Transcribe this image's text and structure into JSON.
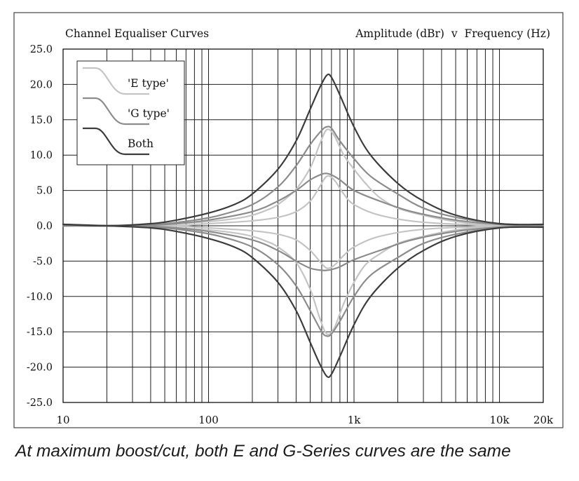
{
  "chart_data": {
    "type": "line",
    "title": "Channel Equaliser Curves",
    "subtitle": "Amplitude (dBr)  v  Frequency (Hz)",
    "x_scale": "log",
    "xlim": [
      10,
      20000
    ],
    "ylim": [
      -25,
      25
    ],
    "grid": true,
    "legend_position": "top-left",
    "x_tick_values": [
      10,
      100,
      1000,
      10000,
      20000
    ],
    "x_tick_labels": [
      "10",
      "100",
      "1k",
      "10k",
      "20k"
    ],
    "y_tick_values": [
      25,
      20,
      15,
      10,
      5,
      0,
      -5,
      -10,
      -15,
      -20,
      -25
    ],
    "y_tick_labels": [
      "25.0",
      "20.0",
      "15.0",
      "10.0",
      "5.0",
      "0.0",
      "-5.0",
      "-10.0",
      "-15.0",
      "-20.0",
      "-25.0"
    ],
    "colors": {
      "E type": "#c4c4c4",
      "G type": "#8c8c8c",
      "Both": "#3c3c3c"
    },
    "legend": [
      {
        "name": "'E type'",
        "color": "#c4c4c4"
      },
      {
        "name": "'G type'",
        "color": "#8c8c8c"
      },
      {
        "name": "Both",
        "color": "#3c3c3c"
      }
    ],
    "series": [
      {
        "name": "'E type'",
        "color": "#c4c4c4",
        "x": [
          10,
          30,
          60,
          100,
          150,
          200,
          250,
          300,
          400,
          500,
          580,
          650,
          730,
          850,
          1000,
          1200,
          1500,
          2000,
          3000,
          5000,
          10000,
          20000
        ],
        "y": [
          0,
          0,
          0.3,
          0.6,
          1.0,
          1.5,
          2.2,
          3.0,
          5.2,
          8.2,
          11.5,
          13.6,
          12.8,
          10.0,
          8.0,
          6.0,
          4.0,
          2.5,
          1.5,
          0.6,
          0,
          0
        ]
      },
      {
        "name": "'E type'",
        "color": "#c4c4c4",
        "x": [
          10,
          30,
          60,
          100,
          150,
          200,
          250,
          300,
          400,
          500,
          580,
          650,
          730,
          850,
          1000,
          1200,
          1500,
          2000,
          3000,
          5000,
          10000,
          20000
        ],
        "y": [
          0,
          0,
          -0.3,
          -0.6,
          -1.0,
          -1.5,
          -2.2,
          -3.0,
          -5.2,
          -9.0,
          -13.0,
          -15.3,
          -14.5,
          -11.0,
          -8.0,
          -5.5,
          -4.0,
          -2.5,
          -1.5,
          -0.6,
          0,
          0
        ]
      },
      {
        "name": "'E type'",
        "color": "#c4c4c4",
        "x": [
          10,
          50,
          100,
          200,
          300,
          400,
          500,
          580,
          650,
          730,
          850,
          1000,
          1500,
          3000,
          10000,
          20000
        ],
        "y": [
          0,
          0,
          0.3,
          0.7,
          1.2,
          2.0,
          3.5,
          5.5,
          7.0,
          6.5,
          4.5,
          3.0,
          1.5,
          0.5,
          0,
          0
        ]
      },
      {
        "name": "'E type'",
        "color": "#c4c4c4",
        "x": [
          10,
          50,
          100,
          200,
          300,
          400,
          500,
          580,
          650,
          730,
          850,
          1000,
          1500,
          3000,
          10000,
          20000
        ],
        "y": [
          0,
          0,
          -0.3,
          -0.7,
          -1.2,
          -2.0,
          -3.5,
          -5.0,
          -6.0,
          -5.6,
          -4.2,
          -3.0,
          -1.5,
          -0.5,
          0,
          0
        ]
      },
      {
        "name": "'G type'",
        "color": "#8c8c8c",
        "x": [
          10,
          30,
          50,
          80,
          120,
          200,
          300,
          400,
          500,
          600,
          650,
          700,
          800,
          1000,
          1300,
          2000,
          3000,
          5000,
          10000,
          20000
        ],
        "y": [
          0,
          0,
          0.3,
          0.8,
          1.5,
          3.0,
          5.5,
          8.5,
          11.5,
          13.5,
          14.0,
          13.8,
          12.0,
          9.5,
          7.0,
          4.5,
          2.5,
          1.2,
          0.3,
          0
        ]
      },
      {
        "name": "'G type'",
        "color": "#8c8c8c",
        "x": [
          10,
          30,
          50,
          80,
          120,
          200,
          300,
          400,
          500,
          600,
          650,
          700,
          800,
          1000,
          1300,
          2000,
          3000,
          5000,
          10000,
          20000
        ],
        "y": [
          0,
          0,
          -0.3,
          -0.8,
          -1.5,
          -3.0,
          -5.5,
          -8.5,
          -12.0,
          -15.0,
          -15.6,
          -15.3,
          -13.5,
          -10.0,
          -7.0,
          -4.5,
          -2.5,
          -1.2,
          -0.3,
          0
        ]
      },
      {
        "name": "'G type'",
        "color": "#8c8c8c",
        "x": [
          10,
          30,
          60,
          100,
          200,
          300,
          400,
          500,
          600,
          650,
          700,
          800,
          1000,
          1500,
          2500,
          5000,
          10000,
          20000
        ],
        "y": [
          0,
          0,
          0.3,
          0.8,
          2.0,
          3.5,
          5.0,
          6.5,
          7.3,
          7.4,
          7.2,
          6.5,
          5.0,
          3.5,
          2.0,
          0.8,
          0.2,
          0
        ]
      },
      {
        "name": "'G type'",
        "color": "#8c8c8c",
        "x": [
          10,
          30,
          60,
          100,
          200,
          300,
          400,
          500,
          600,
          650,
          700,
          800,
          1000,
          1500,
          2500,
          5000,
          10000,
          20000
        ],
        "y": [
          0,
          0,
          -0.3,
          -0.8,
          -2.0,
          -3.5,
          -5.0,
          -6.0,
          -6.3,
          -6.3,
          -6.2,
          -5.8,
          -4.8,
          -3.5,
          -2.0,
          -0.8,
          -0.2,
          0
        ]
      },
      {
        "name": "Both",
        "color": "#3c3c3c",
        "x": [
          10,
          20,
          40,
          60,
          100,
          150,
          200,
          300,
          400,
          500,
          580,
          650,
          700,
          800,
          1000,
          1300,
          2000,
          3000,
          5000,
          10000,
          20000
        ],
        "y": [
          0.2,
          0,
          0.3,
          0.8,
          1.8,
          3.0,
          4.5,
          8.0,
          12.0,
          16.5,
          19.5,
          21.3,
          21.0,
          18.5,
          14.0,
          10.0,
          6.0,
          3.5,
          1.5,
          0.3,
          0.2
        ]
      },
      {
        "name": "Both",
        "color": "#3c3c3c",
        "x": [
          10,
          20,
          40,
          60,
          100,
          150,
          200,
          300,
          400,
          500,
          580,
          650,
          700,
          800,
          1000,
          1300,
          2000,
          3000,
          5000,
          10000,
          20000
        ],
        "y": [
          0.2,
          0,
          -0.3,
          -0.8,
          -1.8,
          -3.0,
          -4.5,
          -8.0,
          -12.0,
          -16.5,
          -19.5,
          -21.3,
          -21.0,
          -18.5,
          -14.0,
          -10.0,
          -6.0,
          -3.5,
          -1.5,
          -0.3,
          -0.2
        ]
      }
    ]
  },
  "caption": "At maximum boost/cut, both E and G-Series curves are the same"
}
